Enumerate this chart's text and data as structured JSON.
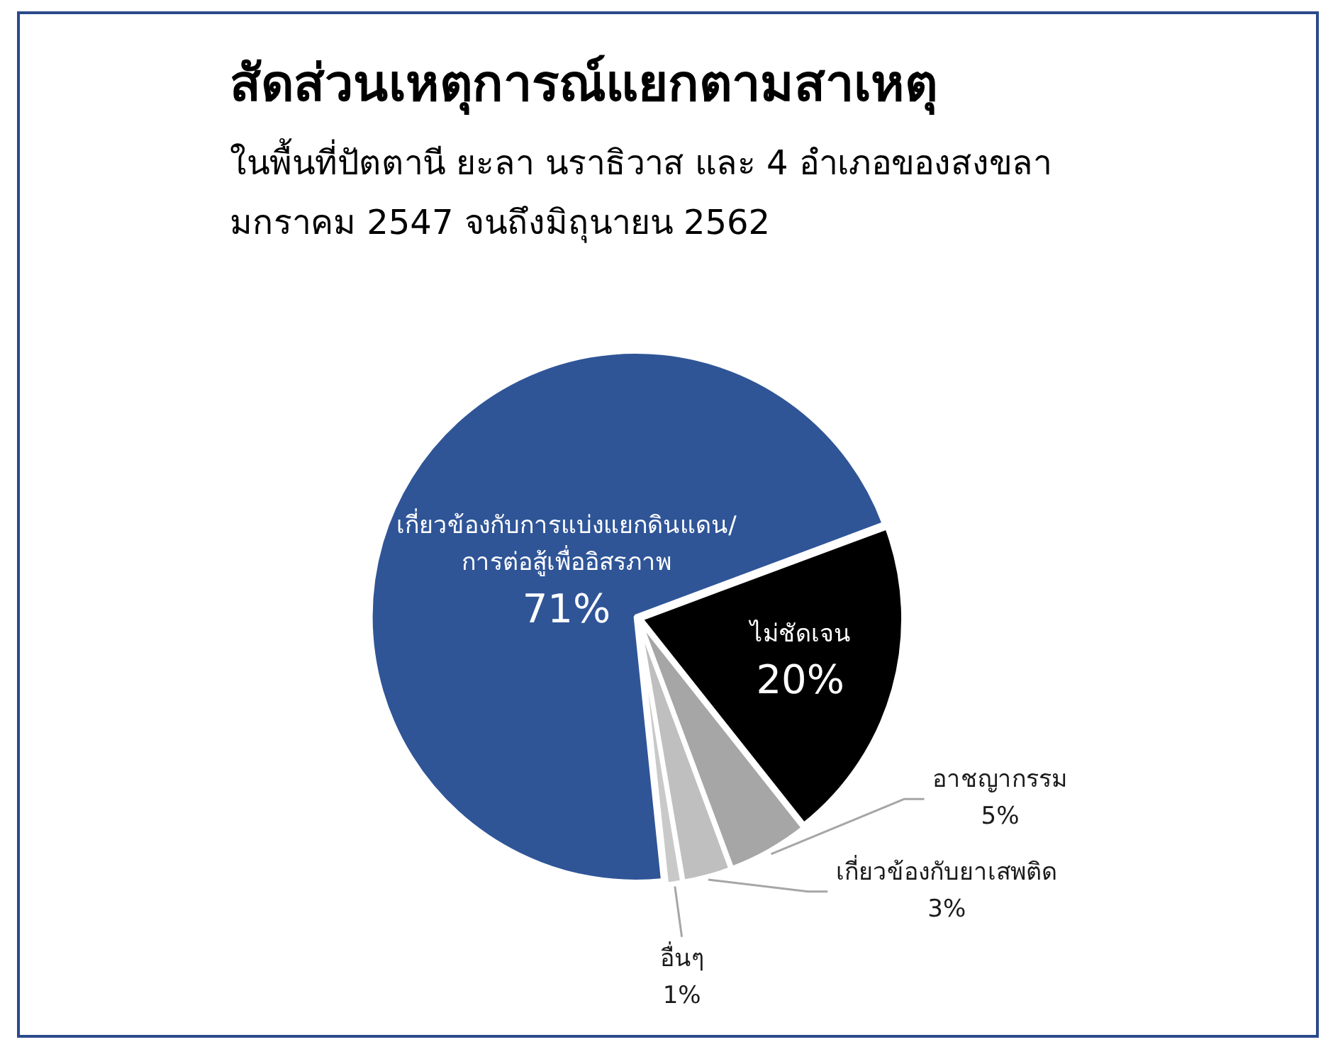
{
  "chart_data": {
    "type": "pie",
    "title": "สัดส่วนเหตุการณ์แยกตามสาเหตุ",
    "subtitle": "ในพื้นที่ปัตตานี ยะลา นราธิวาส และ 4 อำเภอของสงขลา\nมกราคม 2547 จนถึงมิถุนายน 2562",
    "categories": [
      "เกี่ยวข้องกับการแบ่งแยกดินแดน/การต่อสู้เพื่ออิสรภาพ",
      "ไม่ชัดเจน",
      "อาชญากรรม",
      "เกี่ยวข้องกับยาเสพติด",
      "อื่นๆ"
    ],
    "values": [
      71,
      20,
      5,
      3,
      1
    ],
    "colors": [
      "#2f5597",
      "#000000",
      "#a6a6a6",
      "#bfbfbf",
      "#c9c9c9"
    ],
    "value_labels": [
      "71%",
      "20%",
      "5%",
      "3%",
      "1%"
    ]
  }
}
